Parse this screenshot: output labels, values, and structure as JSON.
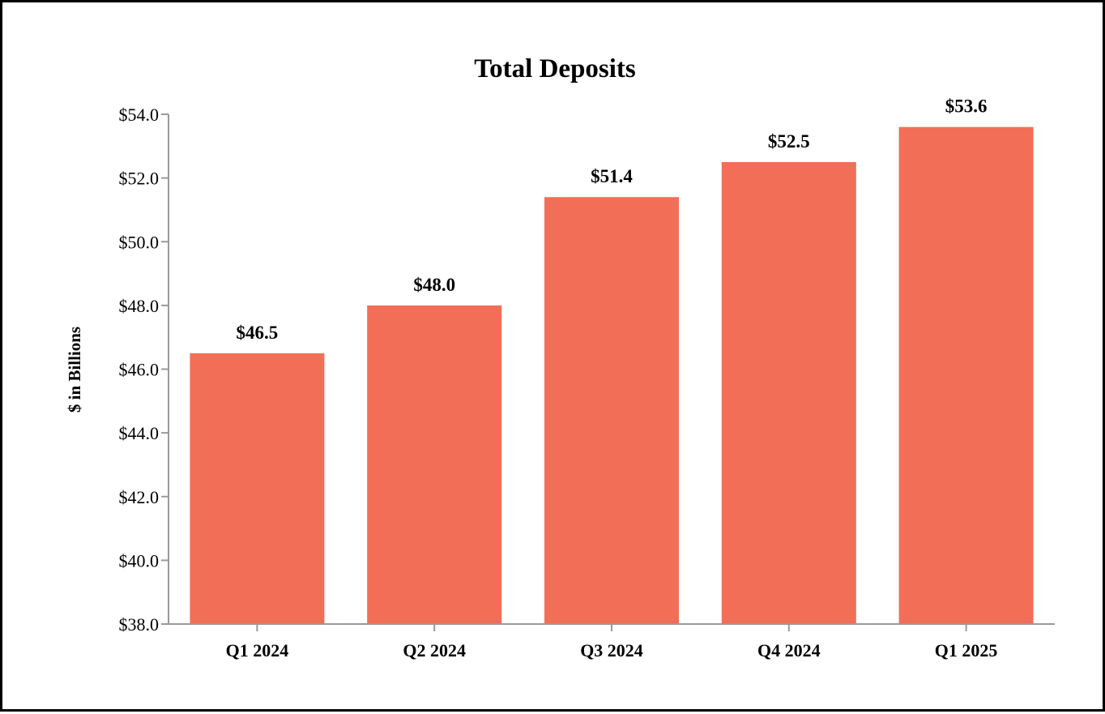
{
  "chart_data": {
    "type": "bar",
    "title": "Total Deposits",
    "xlabel": "",
    "ylabel": "$ in Billions",
    "categories": [
      "Q1 2024",
      "Q2 2024",
      "Q3 2024",
      "Q4 2024",
      "Q1 2025"
    ],
    "values": [
      46.5,
      48.0,
      51.4,
      52.5,
      53.6
    ],
    "data_labels": [
      "$46.5",
      "$48.0",
      "$51.4",
      "$52.5",
      "$53.6"
    ],
    "ylim": [
      38.0,
      54.0
    ],
    "yticks": [
      38.0,
      40.0,
      42.0,
      44.0,
      46.0,
      48.0,
      50.0,
      52.0,
      54.0
    ],
    "ytick_labels": [
      "$38.0",
      "$40.0",
      "$42.0",
      "$44.0",
      "$46.0",
      "$48.0",
      "$50.0",
      "$52.0",
      "$54.0"
    ],
    "grid": false,
    "legend": "none",
    "bar_color": "#F26E56"
  }
}
